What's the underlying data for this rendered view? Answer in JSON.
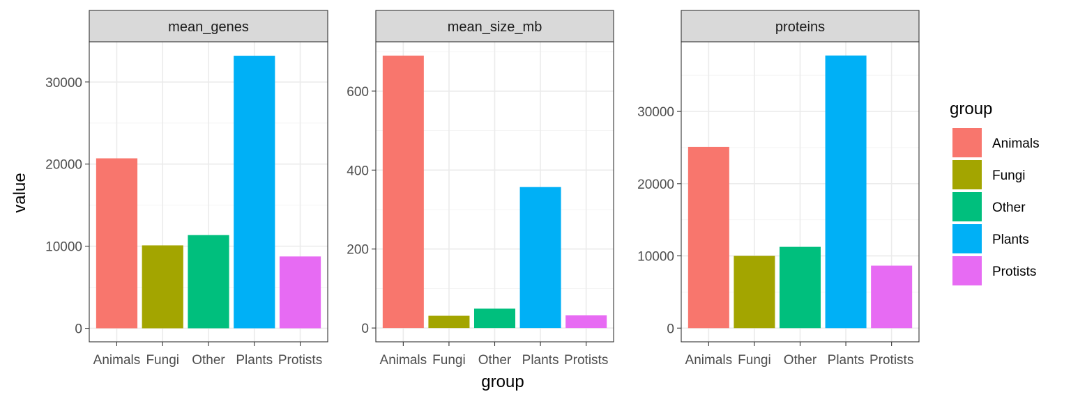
{
  "chart_data": {
    "type": "bar",
    "xlabel": "group",
    "ylabel": "value",
    "categories": [
      "Animals",
      "Fungi",
      "Other",
      "Plants",
      "Protists"
    ],
    "colors": {
      "Animals": "#F8766D",
      "Fungi": "#A3A500",
      "Other": "#00BF7D",
      "Plants": "#00B0F6",
      "Protists": "#E76BF3"
    },
    "legend": {
      "title": "group",
      "placement": "right",
      "entries": [
        "Animals",
        "Fungi",
        "Other",
        "Plants",
        "Protists"
      ]
    },
    "grid": true,
    "facets": [
      {
        "title": "mean_genes",
        "values": [
          20700,
          10100,
          11350,
          33200,
          8750
        ],
        "ylim": [
          -1650,
          34900
        ],
        "ticks": [
          0,
          10000,
          20000,
          30000
        ],
        "tick_labels": [
          "0",
          "10000",
          "20000",
          "30000"
        ]
      },
      {
        "title": "mean_size_mb",
        "values": [
          690,
          31,
          49,
          357,
          32
        ],
        "ylim": [
          -35,
          725
        ],
        "ticks": [
          0,
          200,
          400,
          600
        ],
        "tick_labels": [
          "0",
          "200",
          "400",
          "600"
        ]
      },
      {
        "title": "proteins",
        "values": [
          25100,
          10000,
          11250,
          37750,
          8650
        ],
        "ylim": [
          -1900,
          39650
        ],
        "ticks": [
          0,
          10000,
          20000,
          30000
        ],
        "tick_labels": [
          "0",
          "10000",
          "20000",
          "30000"
        ]
      }
    ]
  }
}
